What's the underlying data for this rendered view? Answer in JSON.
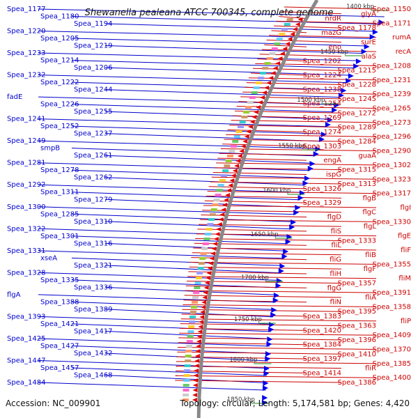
{
  "title": "Shewanella pealeana ATCC 700345, complete genome",
  "accession": "Accession: NC_009901",
  "topology": "Topology: circular; Length: 5,174,581 bp; Genes: 4,420",
  "colors": {
    "left_labels": "#0000cc",
    "right_labels": "#cc0000",
    "backbone": "#888888",
    "tick": "#1a8a1a"
  },
  "kbp_labels": [
    "1400 kbp",
    "1450 kbp",
    "1500 kbp",
    "1550 kbp",
    "1600 kbp",
    "1650 kbp",
    "1700 kbp",
    "1750 kbp",
    "1800 kbp",
    "1850 kbp"
  ],
  "left_genes": [
    "Spea_1177",
    "Spea_1180",
    "Spea_1194",
    "Spea_1220",
    "Spea_1205",
    "Spea_1219",
    "Spea_1233",
    "Spea_1214",
    "Spea_1206",
    "Spea_1232",
    "Spea_1222",
    "Spea_1244",
    "fadE",
    "Spea_1226",
    "Spea_1255",
    "Spea_1241",
    "Spea_1252",
    "Spea_1237",
    "Spea_1249",
    "smpB",
    "Spea_1261",
    "Spea_1281",
    "Spea_1278",
    "Spea_1262",
    "Spea_1292",
    "Spea_1311",
    "Spea_1279",
    "Spea_1300",
    "Spea_1285",
    "Spea_1310",
    "Spea_1322",
    "Spea_1301",
    "Spea_1316",
    "Spea_1331",
    "xseA",
    "Spea_1321",
    "Spea_1328",
    "Spea_1335",
    "Spea_1336",
    "flgA",
    "Spea_1388",
    "Spea_1389",
    "Spea_1393",
    "Spea_1421",
    "Spea_1417",
    "Spea_1425",
    "Spea_1427",
    "Spea_1432",
    "Spea_1447",
    "Spea_1457",
    "Spea_1468",
    "Spea_1484"
  ],
  "right_genes": [
    "Spea_1150",
    "glyA",
    "nrdR",
    "Spea_1171",
    "Spea_1178",
    "mazG",
    "rumA",
    "surE",
    "eno",
    "recA",
    "alaS",
    "Spea_1202",
    "Spea_1208",
    "Spea_1215",
    "Spea_1224",
    "Spea_1231",
    "Spea_1228",
    "Spea_1238",
    "Spea_1239",
    "Spea_1245",
    "Spea_1254",
    "Spea_1265",
    "Spea_1272",
    "Spea_1269",
    "Spea_1273",
    "Spea_1289",
    "Spea_1274",
    "Spea_1296",
    "Spea_1284",
    "Spea_1303",
    "Spea_1290",
    "guaA",
    "engA",
    "Spea_1302",
    "Spea_1315",
    "ispG",
    "Spea_1323",
    "Spea_1313",
    "Spea_1326",
    "Spea_1317",
    "flgB",
    "Spea_1329",
    "flgI",
    "flgC",
    "flgD",
    "Spea_1330",
    "flgL",
    "fliS",
    "flgE",
    "Spea_1333",
    "fliL",
    "fliF",
    "fliB",
    "fliG",
    "Spea_1355",
    "flgF",
    "fliH",
    "fliM",
    "Spea_1357",
    "flgG",
    "Spea_1391",
    "fliA",
    "fliN",
    "Spea_1358",
    "Spea_1395",
    "Spea_1383",
    "fliP",
    "Spea_1363",
    "Spea_1420",
    "Spea_1409",
    "Spea_1396",
    "Spea_1384",
    "Spea_1370",
    "Spea_1410",
    "Spea_1397",
    "Spea_1385",
    "fliR",
    "Spea_1414",
    "Spea_1400",
    "Spea_1386"
  ]
}
